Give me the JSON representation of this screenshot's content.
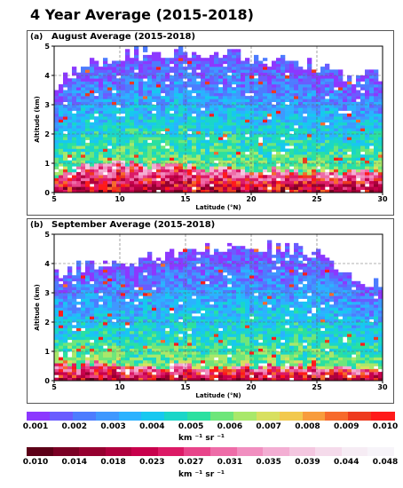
{
  "figure": {
    "title": "4 Year Average (2015-2018)"
  },
  "chart_data": [
    {
      "type": "heatmap",
      "panel_label": "(a)",
      "title": "August Average (2015-2018)",
      "xlabel": "Latitude (°N)",
      "ylabel": "Altitude (km)",
      "xlim": [
        5,
        30
      ],
      "ylim": [
        0,
        5
      ],
      "xticks": [
        5,
        10,
        15,
        20,
        25,
        30
      ],
      "yticks": [
        0,
        1,
        2,
        3,
        4,
        5
      ],
      "grid": true,
      "profile": {
        "latitude": [
          5,
          7.5,
          10,
          12.5,
          15,
          17.5,
          20,
          22.5,
          25,
          27.5,
          30
        ],
        "cloud_top_km": [
          3.6,
          4.4,
          4.7,
          4.8,
          4.8,
          4.8,
          4.6,
          4.5,
          4.3,
          4.0,
          4.0
        ],
        "high_backscatter_top_km": [
          0.6,
          0.9,
          1.0,
          0.9,
          0.9,
          0.8,
          0.8,
          0.7,
          0.7,
          0.7,
          0.8
        ]
      }
    },
    {
      "type": "heatmap",
      "panel_label": "(b)",
      "title": "September Average (2015-2018)",
      "xlabel": "Latitude (°N)",
      "ylabel": "Altitude (km)",
      "xlim": [
        5,
        30
      ],
      "ylim": [
        0,
        5
      ],
      "xticks": [
        5,
        10,
        15,
        20,
        25,
        30
      ],
      "yticks": [
        0,
        1,
        2,
        3,
        4,
        5
      ],
      "grid": true,
      "profile": {
        "latitude": [
          5,
          7.5,
          10,
          12.5,
          15,
          17.5,
          20,
          22.5,
          25,
          27.5,
          30
        ],
        "cloud_top_km": [
          3.6,
          3.9,
          4.1,
          4.2,
          4.3,
          4.5,
          4.6,
          4.5,
          4.4,
          3.6,
          3.3
        ],
        "high_backscatter_top_km": [
          0.5,
          0.6,
          0.6,
          0.5,
          0.5,
          0.5,
          0.5,
          0.5,
          0.5,
          0.4,
          0.4
        ]
      }
    }
  ],
  "colorbar_1": {
    "ticks": [
      "0.001",
      "0.002",
      "0.003",
      "0.004",
      "0.005",
      "0.006",
      "0.007",
      "0.008",
      "0.009",
      "0.010"
    ],
    "units": "km ⁻¹ sr ⁻¹",
    "colors": [
      "#8c38ff",
      "#6a5cff",
      "#4d7cff",
      "#3f98ff",
      "#2bb2ff",
      "#17c8f0",
      "#1ad6c8",
      "#2be0a0",
      "#6ee67a",
      "#a9e86a",
      "#d8e060",
      "#f2c94e",
      "#f89c3c",
      "#f76a2c",
      "#ee3a1e",
      "#ff1a1a"
    ]
  },
  "colorbar_2": {
    "ticks": [
      "0.010",
      "0.014",
      "0.018",
      "0.023",
      "0.027",
      "0.031",
      "0.035",
      "0.039",
      "0.044",
      "0.048"
    ],
    "units": "km ⁻¹ sr ⁻¹",
    "colors": [
      "#5c0018",
      "#7a0024",
      "#960030",
      "#b0003e",
      "#c8004c",
      "#dc1a66",
      "#e8448a",
      "#ee6ca8",
      "#f18fc0",
      "#f3aed3",
      "#f4c7e0",
      "#f5dbeb",
      "#f6ecf4",
      "#f7f4f9"
    ]
  }
}
